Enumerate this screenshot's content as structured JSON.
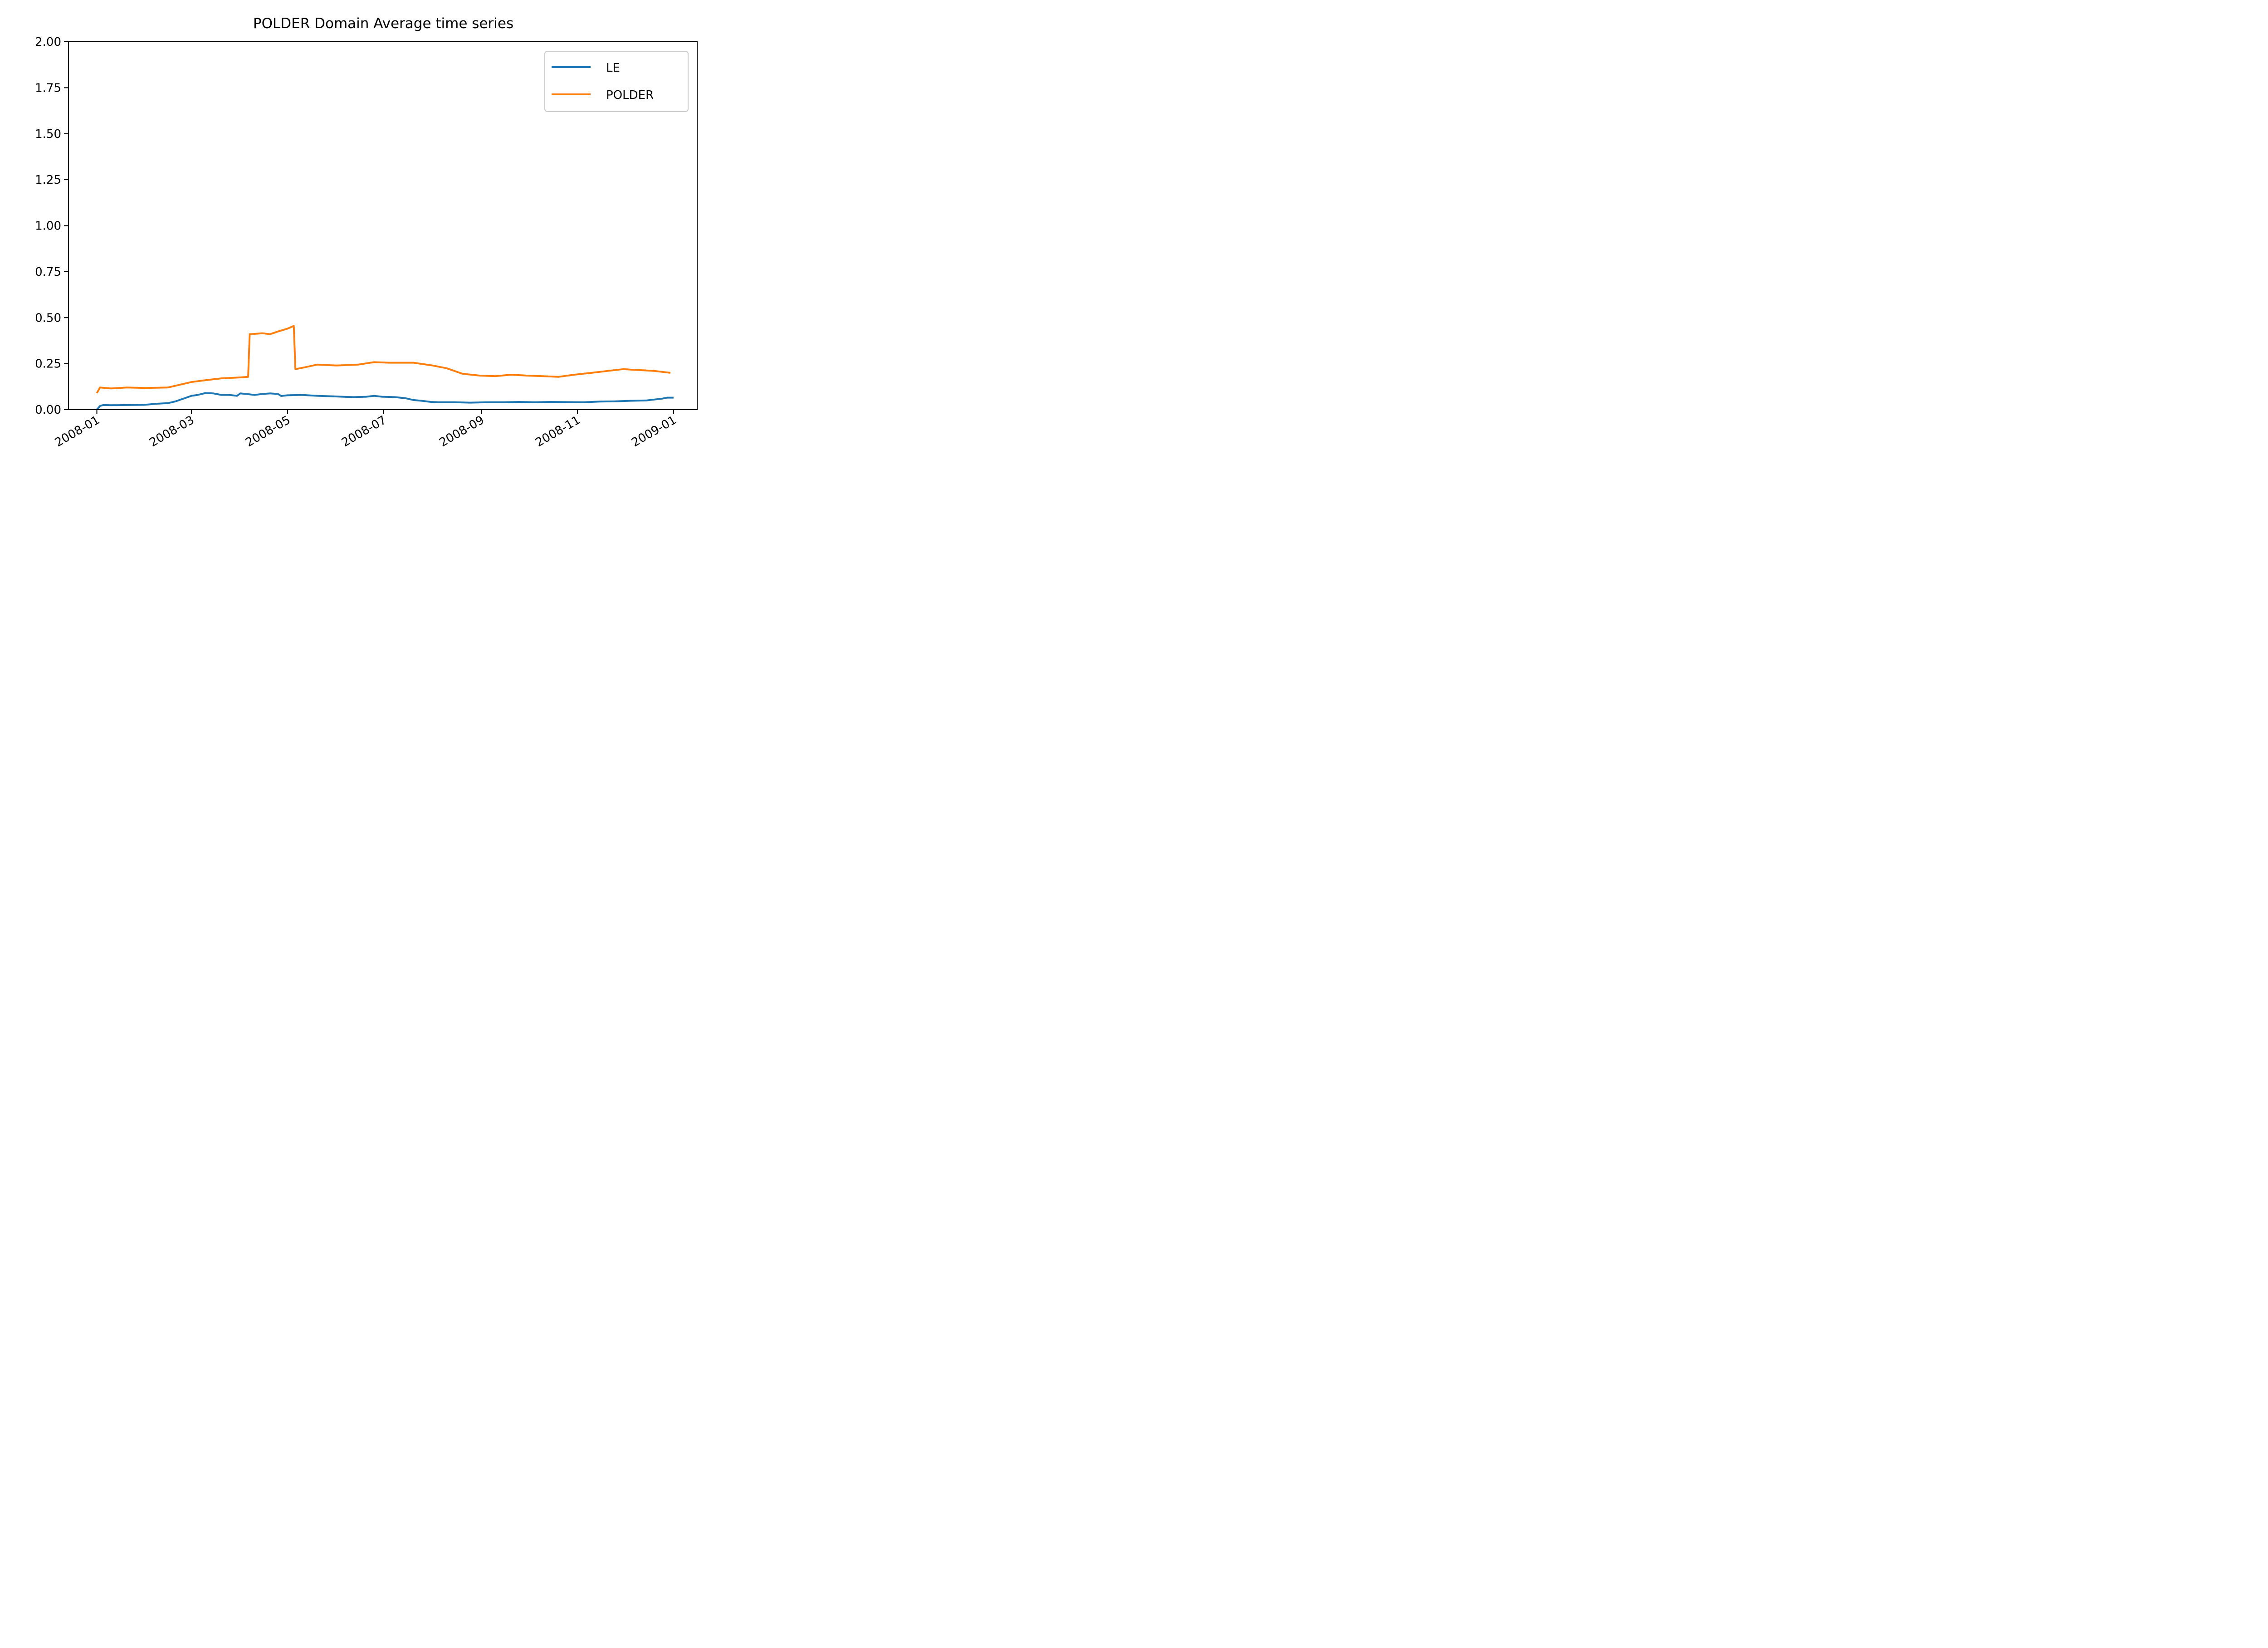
{
  "chart_data": {
    "type": "line",
    "title": "POLDER Domain Average time series",
    "xlabel": "",
    "ylabel": "",
    "ylim": [
      0.0,
      2.0
    ],
    "xlim": [
      "2007-12-14",
      "2009-01-16"
    ],
    "x_ticks": [
      "2008-01",
      "2008-03",
      "2008-05",
      "2008-07",
      "2008-09",
      "2008-11",
      "2009-01"
    ],
    "y_ticks": [
      "0.00",
      "0.25",
      "0.50",
      "0.75",
      "1.00",
      "1.25",
      "1.50",
      "1.75",
      "2.00"
    ],
    "grid": false,
    "legend_position": "top-right",
    "series": [
      {
        "name": "LE",
        "color": "#1f77b4",
        "points": [
          [
            "2008-01-01",
            0.0
          ],
          [
            "2008-01-03",
            0.02
          ],
          [
            "2008-01-05",
            0.025
          ],
          [
            "2008-01-10",
            0.024
          ],
          [
            "2008-01-20",
            0.025
          ],
          [
            "2008-01-31",
            0.026
          ],
          [
            "2008-02-08",
            0.032
          ],
          [
            "2008-02-15",
            0.035
          ],
          [
            "2008-02-20",
            0.045
          ],
          [
            "2008-02-25",
            0.06
          ],
          [
            "2008-03-01",
            0.075
          ],
          [
            "2008-03-05",
            0.08
          ],
          [
            "2008-03-10",
            0.09
          ],
          [
            "2008-03-15",
            0.088
          ],
          [
            "2008-03-20",
            0.08
          ],
          [
            "2008-03-25",
            0.08
          ],
          [
            "2008-03-30",
            0.075
          ],
          [
            "2008-04-01",
            0.088
          ],
          [
            "2008-04-05",
            0.085
          ],
          [
            "2008-04-10",
            0.08
          ],
          [
            "2008-04-15",
            0.085
          ],
          [
            "2008-04-20",
            0.088
          ],
          [
            "2008-04-25",
            0.085
          ],
          [
            "2008-04-27",
            0.074
          ],
          [
            "2008-05-01",
            0.078
          ],
          [
            "2008-05-10",
            0.08
          ],
          [
            "2008-05-20",
            0.075
          ],
          [
            "2008-05-30",
            0.072
          ],
          [
            "2008-06-05",
            0.07
          ],
          [
            "2008-06-12",
            0.068
          ],
          [
            "2008-06-20",
            0.07
          ],
          [
            "2008-06-25",
            0.075
          ],
          [
            "2008-06-30",
            0.07
          ],
          [
            "2008-07-08",
            0.068
          ],
          [
            "2008-07-15",
            0.062
          ],
          [
            "2008-07-20",
            0.052
          ],
          [
            "2008-07-25",
            0.048
          ],
          [
            "2008-07-31",
            0.042
          ],
          [
            "2008-08-05",
            0.04
          ],
          [
            "2008-08-15",
            0.04
          ],
          [
            "2008-08-25",
            0.038
          ],
          [
            "2008-09-05",
            0.04
          ],
          [
            "2008-09-15",
            0.04
          ],
          [
            "2008-09-25",
            0.042
          ],
          [
            "2008-10-05",
            0.04
          ],
          [
            "2008-10-15",
            0.042
          ],
          [
            "2008-10-25",
            0.041
          ],
          [
            "2008-11-05",
            0.04
          ],
          [
            "2008-11-15",
            0.044
          ],
          [
            "2008-11-25",
            0.045
          ],
          [
            "2008-12-05",
            0.048
          ],
          [
            "2008-12-15",
            0.05
          ],
          [
            "2008-12-25",
            0.06
          ],
          [
            "2009-01-01",
            0.065
          ],
          [
            "2008-12-28",
            0.065
          ]
        ]
      },
      {
        "name": "POLDER",
        "color": "#ff7f0e",
        "points": [
          [
            "2008-01-01",
            0.09
          ],
          [
            "2008-01-03",
            0.12
          ],
          [
            "2008-01-10",
            0.115
          ],
          [
            "2008-01-20",
            0.12
          ],
          [
            "2008-02-01",
            0.118
          ],
          [
            "2008-02-15",
            0.12
          ],
          [
            "2008-02-20",
            0.13
          ],
          [
            "2008-03-01",
            0.15
          ],
          [
            "2008-03-10",
            0.16
          ],
          [
            "2008-03-20",
            0.17
          ],
          [
            "2008-04-01",
            0.175
          ],
          [
            "2008-04-06",
            0.178
          ],
          [
            "2008-04-07",
            0.41
          ],
          [
            "2008-04-15",
            0.415
          ],
          [
            "2008-04-20",
            0.41
          ],
          [
            "2008-04-25",
            0.425
          ],
          [
            "2008-05-01",
            0.44
          ],
          [
            "2008-05-05",
            0.455
          ],
          [
            "2008-05-06",
            0.22
          ],
          [
            "2008-05-12",
            0.23
          ],
          [
            "2008-05-20",
            0.245
          ],
          [
            "2008-06-01",
            0.24
          ],
          [
            "2008-06-15",
            0.245
          ],
          [
            "2008-06-25",
            0.258
          ],
          [
            "2008-07-05",
            0.255
          ],
          [
            "2008-07-20",
            0.255
          ],
          [
            "2008-08-01",
            0.24
          ],
          [
            "2008-08-10",
            0.225
          ],
          [
            "2008-08-20",
            0.195
          ],
          [
            "2008-08-31",
            0.185
          ],
          [
            "2008-09-10",
            0.182
          ],
          [
            "2008-09-20",
            0.19
          ],
          [
            "2008-09-30",
            0.185
          ],
          [
            "2008-10-10",
            0.182
          ],
          [
            "2008-10-20",
            0.178
          ],
          [
            "2008-10-30",
            0.19
          ],
          [
            "2008-11-10",
            0.2
          ],
          [
            "2008-11-20",
            0.21
          ],
          [
            "2008-11-30",
            0.22
          ],
          [
            "2008-12-10",
            0.215
          ],
          [
            "2008-12-20",
            0.21
          ],
          [
            "2008-12-30",
            0.2
          ]
        ]
      }
    ]
  }
}
